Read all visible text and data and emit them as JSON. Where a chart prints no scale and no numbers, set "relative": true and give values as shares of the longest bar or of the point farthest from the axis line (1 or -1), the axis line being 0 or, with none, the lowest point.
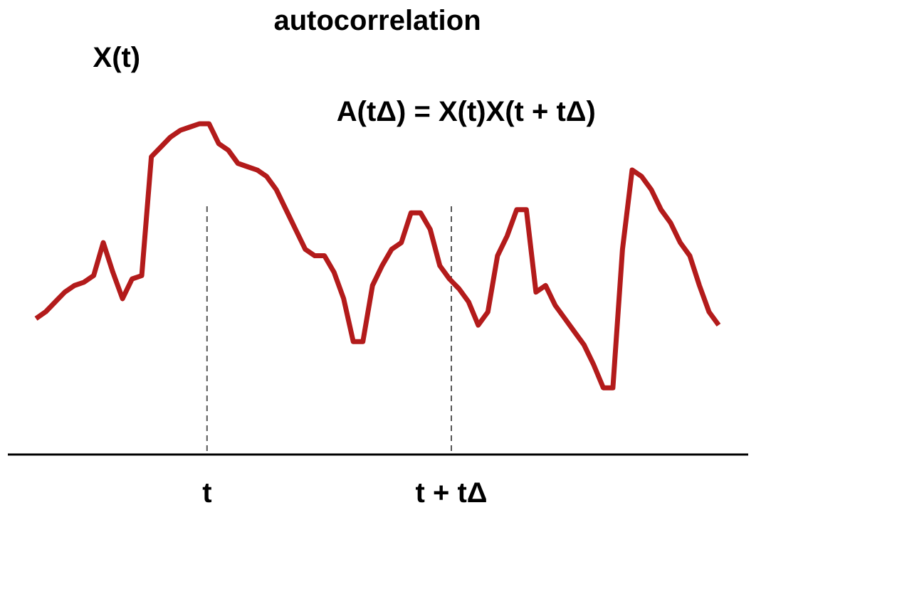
{
  "chart_data": {
    "type": "line",
    "title": "autocorrelation",
    "ylabel": "X(t)",
    "relative": true,
    "categories": [
      null,
      null,
      null,
      null,
      null,
      null,
      null,
      null,
      null,
      null,
      null,
      null,
      null,
      null,
      null,
      null,
      null,
      null,
      null,
      null,
      null,
      null,
      null,
      null,
      null,
      null,
      null,
      null,
      null,
      null,
      null,
      null,
      null,
      null,
      null,
      null,
      null,
      null,
      null,
      null,
      null,
      null,
      null,
      null,
      null,
      null,
      null,
      null,
      null,
      null,
      null,
      null,
      null,
      null,
      null,
      null,
      null,
      null,
      null,
      null,
      null,
      null,
      null,
      null,
      null,
      null,
      null,
      null,
      null,
      null,
      null,
      null
    ],
    "series": [
      {
        "color": "#b31b1b",
        "values": [
          0.41,
          0.43,
          0.46,
          0.49,
          0.51,
          0.52,
          0.54,
          0.64,
          0.55,
          0.47,
          0.53,
          0.54,
          0.9,
          0.93,
          0.96,
          0.98,
          0.99,
          1,
          1,
          0.94,
          0.92,
          0.88,
          0.87,
          0.86,
          0.84,
          0.8,
          0.74,
          0.68,
          0.62,
          0.6,
          0.6,
          0.55,
          0.47,
          0.34,
          0.34,
          0.51,
          0.57,
          0.62,
          0.64,
          0.73,
          0.73,
          0.68,
          0.57,
          0.53,
          0.5,
          0.46,
          0.39,
          0.43,
          0.6,
          0.66,
          0.74,
          0.74,
          0.49,
          0.51,
          0.45,
          0.41,
          0.37,
          0.33,
          0.27,
          0.2,
          0.2,
          0.62,
          0.86,
          0.84,
          0.8,
          0.74,
          0.7,
          0.64,
          0.6,
          0.51,
          0.43,
          0.39
        ]
      }
    ],
    "annotations": [
      "A(tΔ) = X(t)X(t + tΔ)",
      "t",
      "t + tΔ"
    ],
    "marker": "none",
    "line_style": "solid"
  }
}
